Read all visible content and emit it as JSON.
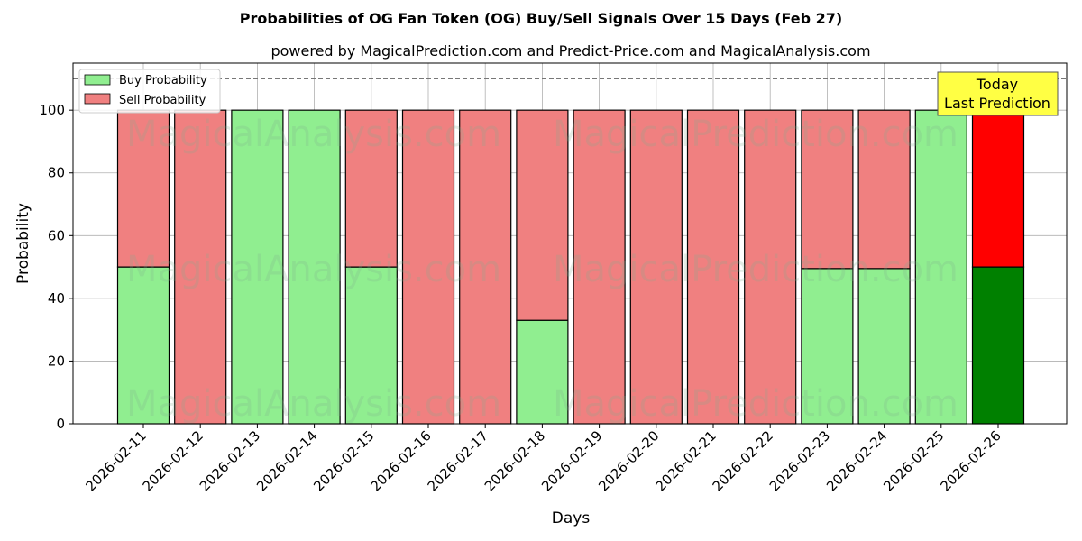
{
  "chart_data": {
    "type": "bar",
    "stacked": true,
    "title": "Probabilities of OG Fan Token (OG) Buy/Sell Signals Over 15 Days (Feb 27)",
    "subtitle": "powered by MagicalPrediction.com and Predict-Price.com and MagicalAnalysis.com",
    "xlabel": "Days",
    "ylabel": "Probability",
    "ylim": [
      0,
      115
    ],
    "yticks": [
      0,
      20,
      40,
      60,
      80,
      100
    ],
    "grid": true,
    "reference_line": 110,
    "categories": [
      "2026-02-11",
      "2026-02-12",
      "2026-02-13",
      "2026-02-14",
      "2026-02-15",
      "2026-02-16",
      "2026-02-17",
      "2026-02-18",
      "2026-02-19",
      "2026-02-20",
      "2026-02-21",
      "2026-02-22",
      "2026-02-23",
      "2026-02-24",
      "2026-02-25",
      "2026-02-26"
    ],
    "series": [
      {
        "name": "Buy Probability",
        "color": "#90ee90",
        "highlight_color": "#008000",
        "values": [
          50,
          0,
          100,
          100,
          50,
          0,
          0,
          33,
          0,
          0,
          0,
          0,
          49.5,
          49.5,
          100,
          50
        ]
      },
      {
        "name": "Sell Probability",
        "color": "#f08080",
        "highlight_color": "#ff0000",
        "values": [
          50,
          100,
          0,
          0,
          50,
          100,
          100,
          67,
          100,
          100,
          100,
          100,
          50.5,
          50.5,
          0,
          50
        ]
      }
    ],
    "highlight_index": 15,
    "legend_position": "top-left",
    "annotation": {
      "lines": [
        "Today",
        "Last Prediction"
      ],
      "bg": "#ffff44"
    },
    "watermarks": [
      "MagicalAnalysis.com",
      "MagicalPrediction.com"
    ]
  }
}
